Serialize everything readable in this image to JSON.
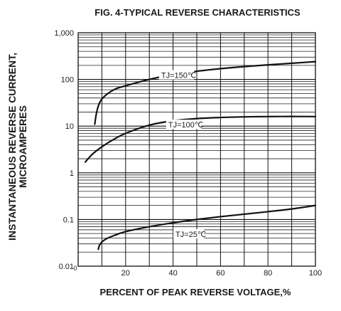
{
  "chart_data": {
    "type": "line",
    "title": "FIG. 4-TYPICAL REVERSE CHARACTERISTICS",
    "xlabel": "PERCENT OF PEAK REVERSE VOLTAGE,%",
    "ylabel_lines": [
      "INSTANTANEOUS REVERSE CURRENT,",
      "MICROAMPERES"
    ],
    "xlim": [
      0,
      100
    ],
    "ylim": [
      0.01,
      1000
    ],
    "yscale": "log",
    "grid": true,
    "x_ticks": [
      {
        "value": 0,
        "label": "0"
      },
      {
        "value": 20,
        "label": "20"
      },
      {
        "value": 40,
        "label": "40"
      },
      {
        "value": 60,
        "label": "60"
      },
      {
        "value": 80,
        "label": "80"
      },
      {
        "value": 100,
        "label": "100"
      }
    ],
    "y_ticks": [
      {
        "value": 0.01,
        "label": "0.01"
      },
      {
        "value": 0.1,
        "label": "0.1"
      },
      {
        "value": 1,
        "label": "1"
      },
      {
        "value": 10,
        "label": "10"
      },
      {
        "value": 100,
        "label": "100"
      },
      {
        "value": 1000,
        "label": "1,000"
      }
    ],
    "series": [
      {
        "label": "TJ=150℃",
        "label_at": [
          35,
          115
        ],
        "points": [
          [
            7,
            11
          ],
          [
            8,
            22
          ],
          [
            10,
            38
          ],
          [
            15,
            60
          ],
          [
            20,
            73
          ],
          [
            30,
            100
          ],
          [
            40,
            128
          ],
          [
            50,
            150
          ],
          [
            60,
            170
          ],
          [
            70,
            188
          ],
          [
            80,
            205
          ],
          [
            90,
            222
          ],
          [
            100,
            240
          ]
        ]
      },
      {
        "label": "TJ=100℃",
        "label_at": [
          38,
          10
        ],
        "points": [
          [
            3,
            1.7
          ],
          [
            6,
            2.5
          ],
          [
            10,
            3.6
          ],
          [
            15,
            5.2
          ],
          [
            20,
            7
          ],
          [
            30,
            10.5
          ],
          [
            40,
            13
          ],
          [
            50,
            14.5
          ],
          [
            60,
            15.3
          ],
          [
            70,
            15.8
          ],
          [
            80,
            16
          ],
          [
            90,
            16.1
          ],
          [
            100,
            16
          ]
        ]
      },
      {
        "label": "TJ=25℃",
        "label_at": [
          41,
          0.045
        ],
        "points": [
          [
            8.5,
            0.023
          ],
          [
            9,
            0.028
          ],
          [
            10,
            0.033
          ],
          [
            12,
            0.039
          ],
          [
            15,
            0.045
          ],
          [
            20,
            0.055
          ],
          [
            30,
            0.07
          ],
          [
            40,
            0.085
          ],
          [
            50,
            0.1
          ],
          [
            60,
            0.115
          ],
          [
            70,
            0.13
          ],
          [
            80,
            0.147
          ],
          [
            90,
            0.168
          ],
          [
            100,
            0.2
          ]
        ]
      }
    ]
  }
}
